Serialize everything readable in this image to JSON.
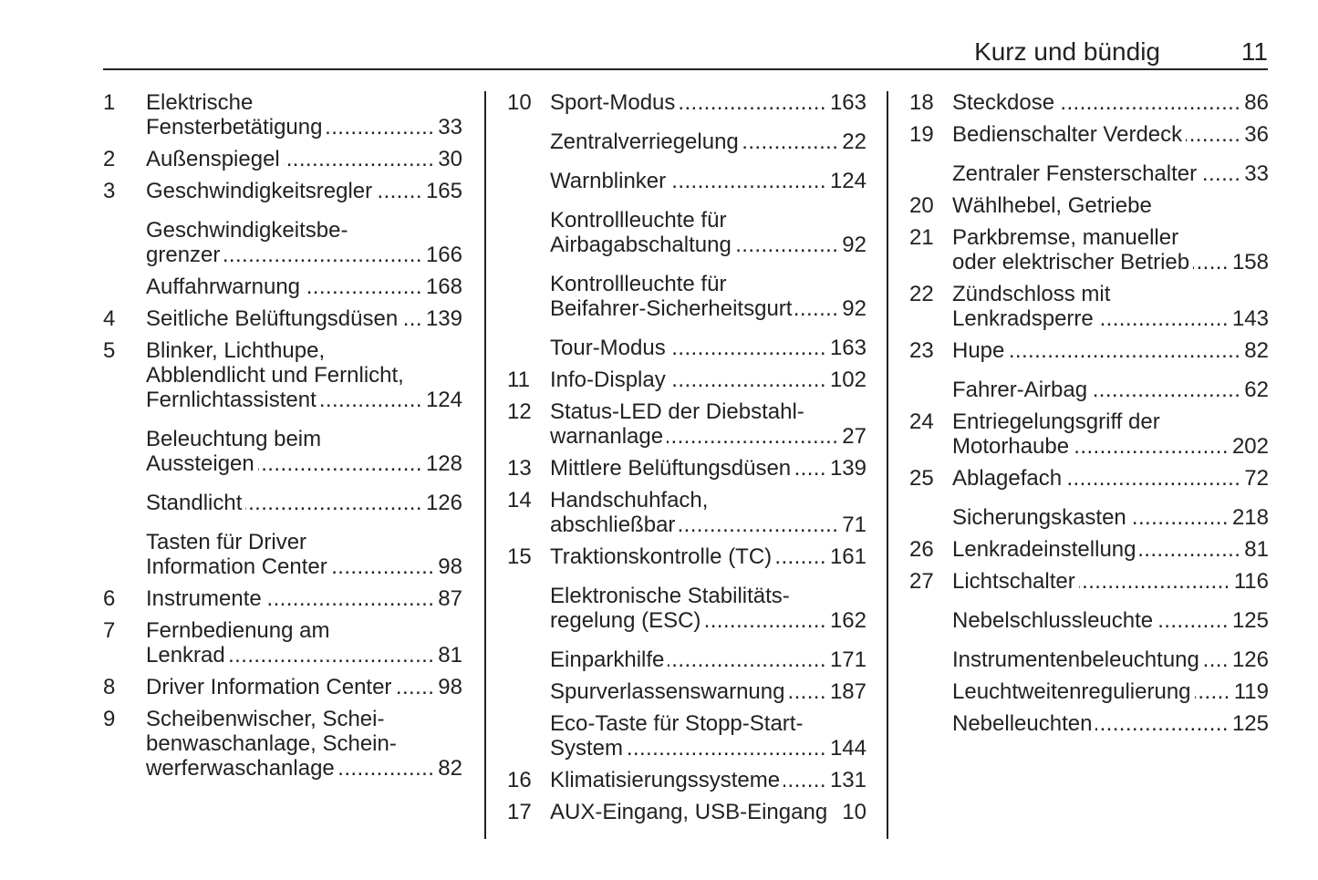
{
  "header": {
    "title": "Kurz und bündig",
    "page_number": "11"
  },
  "columns": [
    {
      "entries": [
        {
          "num": "1",
          "lines": [
            "Elektrische",
            "Fensterbetätigung"
          ],
          "page": "33"
        },
        {
          "num": "2",
          "lines": [
            "Außenspiegel"
          ],
          "page": "30"
        },
        {
          "num": "3",
          "lines": [
            "Geschwindigkeitsregler"
          ],
          "page": "165"
        },
        {
          "num": "",
          "lines": [
            "Geschwindigkeitsbe-",
            "grenzer"
          ],
          "page": "166"
        },
        {
          "num": "",
          "lines": [
            "Auffahrwarnung"
          ],
          "page": "168"
        },
        {
          "num": "4",
          "lines": [
            "Seitliche Belüftungsdüsen"
          ],
          "page": "139"
        },
        {
          "num": "5",
          "lines": [
            "Blinker, Lichthupe,",
            "Abblendlicht und Fernlicht,",
            "Fernlichtassistent"
          ],
          "page": "124"
        },
        {
          "num": "",
          "lines": [
            "Beleuchtung beim",
            "Aussteigen"
          ],
          "page": "128"
        },
        {
          "num": "",
          "lines": [
            "Standlicht"
          ],
          "page": "126"
        },
        {
          "num": "",
          "lines": [
            "Tasten für Driver",
            "Information Center"
          ],
          "page": "98"
        },
        {
          "num": "6",
          "lines": [
            "Instrumente"
          ],
          "page": "87"
        },
        {
          "num": "7",
          "lines": [
            "Fernbedienung am",
            "Lenkrad"
          ],
          "page": "81"
        },
        {
          "num": "8",
          "lines": [
            "Driver Information Center"
          ],
          "page": "98"
        },
        {
          "num": "9",
          "lines": [
            "Scheibenwischer, Schei-",
            "benwaschanlage, Schein-",
            "werferwaschanlage"
          ],
          "page": "82"
        }
      ]
    },
    {
      "entries": [
        {
          "num": "10",
          "lines": [
            "Sport-Modus"
          ],
          "page": "163"
        },
        {
          "num": "",
          "lines": [
            "Zentralverriegelung"
          ],
          "page": "22"
        },
        {
          "num": "",
          "lines": [
            "Warnblinker"
          ],
          "page": "124"
        },
        {
          "num": "",
          "lines": [
            "Kontrollleuchte für",
            "Airbagabschaltung"
          ],
          "page": "92"
        },
        {
          "num": "",
          "lines": [
            "Kontrollleuchte für",
            "Beifahrer-Sicherheitsgurt"
          ],
          "page": "92"
        },
        {
          "num": "",
          "lines": [
            "Tour-Modus"
          ],
          "page": "163"
        },
        {
          "num": "11",
          "lines": [
            "Info-Display"
          ],
          "page": "102"
        },
        {
          "num": "12",
          "lines": [
            "Status-LED der Diebstahl-",
            "warnanlage"
          ],
          "page": "27"
        },
        {
          "num": "13",
          "lines": [
            "Mittlere Belüftungsdüsen"
          ],
          "page": "139"
        },
        {
          "num": "14",
          "lines": [
            "Handschuhfach,",
            "abschließbar"
          ],
          "page": "71"
        },
        {
          "num": "15",
          "lines": [
            "Traktionskontrolle (TC)"
          ],
          "page": "161"
        },
        {
          "num": "",
          "lines": [
            "Elektronische Stabilitäts-",
            "regelung (ESC)"
          ],
          "page": "162"
        },
        {
          "num": "",
          "lines": [
            "Einparkhilfe"
          ],
          "page": "171"
        },
        {
          "num": "",
          "lines": [
            "Spurverlassenswarnung"
          ],
          "page": "187"
        },
        {
          "num": "",
          "lines": [
            "Eco-Taste für Stopp-Start-",
            "System"
          ],
          "page": "144"
        },
        {
          "num": "16",
          "lines": [
            "Klimatisierungssysteme"
          ],
          "page": "131"
        },
        {
          "num": "17",
          "lines": [
            "AUX-Eingang, USB-Eingang"
          ],
          "page": "10"
        }
      ]
    },
    {
      "entries": [
        {
          "num": "18",
          "lines": [
            "Steckdose"
          ],
          "page": "86"
        },
        {
          "num": "19",
          "lines": [
            "Bedienschalter Verdeck"
          ],
          "page": "36"
        },
        {
          "num": "",
          "lines": [
            "Zentraler Fensterschalter"
          ],
          "page": "33"
        },
        {
          "num": "20",
          "lines": [
            "Wählhebel, Getriebe"
          ],
          "page": ""
        },
        {
          "num": "21",
          "lines": [
            "Parkbremse, manueller",
            "oder elektrischer Betrieb"
          ],
          "page": "158"
        },
        {
          "num": "22",
          "lines": [
            "Zündschloss mit",
            "Lenkradsperre"
          ],
          "page": "143"
        },
        {
          "num": "23",
          "lines": [
            "Hupe"
          ],
          "page": "82"
        },
        {
          "num": "",
          "lines": [
            "Fahrer-Airbag"
          ],
          "page": "62"
        },
        {
          "num": "24",
          "lines": [
            "Entriegelungsgriff der",
            "Motorhaube"
          ],
          "page": "202"
        },
        {
          "num": "25",
          "lines": [
            "Ablagefach"
          ],
          "page": "72"
        },
        {
          "num": "",
          "lines": [
            "Sicherungskasten"
          ],
          "page": "218"
        },
        {
          "num": "26",
          "lines": [
            "Lenkradeinstellung"
          ],
          "page": "81"
        },
        {
          "num": "27",
          "lines": [
            "Lichtschalter"
          ],
          "page": "116"
        },
        {
          "num": "",
          "lines": [
            "Nebelschlussleuchte"
          ],
          "page": "125"
        },
        {
          "num": "",
          "lines": [
            "Instrumentenbeleuchtung"
          ],
          "page": "126"
        },
        {
          "num": "",
          "lines": [
            "Leuchtweitenregulierung"
          ],
          "page": "119"
        },
        {
          "num": "",
          "lines": [
            "Nebelleuchten"
          ],
          "page": "125"
        }
      ]
    }
  ]
}
